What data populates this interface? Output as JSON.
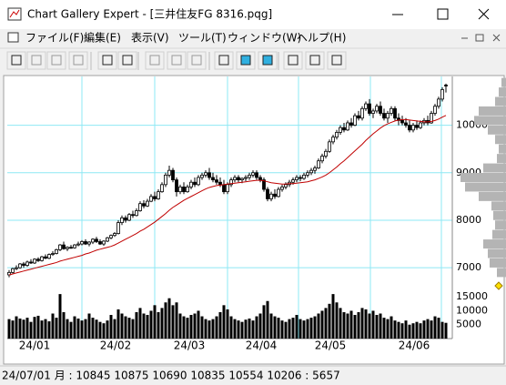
{
  "window": {
    "title": "Chart Gallery Expert - [三井住友FG 8316.pqg]"
  },
  "menu": [
    "ファイル(F)",
    "編集(E)",
    "表示(V)",
    "ツール(T)",
    "ウィンドウ(W)",
    "ヘルプ(H)"
  ],
  "chart_data": {
    "type": "candlestick",
    "x_labels": [
      "24/01",
      "24/02",
      "24/03",
      "24/04",
      "24/05",
      "24/06"
    ],
    "ylim": [
      6850,
      10950
    ],
    "yticks": [
      7000,
      8000,
      9000,
      10000
    ],
    "grid": true,
    "grid_color": "#8ee8f4",
    "up_color": "#ffffff",
    "down_color": "#000000",
    "candles": [
      [
        6850,
        6950,
        6800,
        6900
      ],
      [
        6900,
        7000,
        6880,
        6980
      ],
      [
        6980,
        7050,
        6950,
        7000
      ],
      [
        7000,
        7100,
        6980,
        7080
      ],
      [
        7080,
        7120,
        7000,
        7050
      ],
      [
        7050,
        7150,
        7020,
        7120
      ],
      [
        7120,
        7180,
        7080,
        7100
      ],
      [
        7100,
        7200,
        7080,
        7180
      ],
      [
        7180,
        7220,
        7120,
        7150
      ],
      [
        7150,
        7250,
        7130,
        7230
      ],
      [
        7230,
        7280,
        7180,
        7200
      ],
      [
        7200,
        7300,
        7180,
        7280
      ],
      [
        7280,
        7350,
        7250,
        7300
      ],
      [
        7300,
        7400,
        7280,
        7380
      ],
      [
        7380,
        7500,
        7350,
        7480
      ],
      [
        7480,
        7550,
        7380,
        7400
      ],
      [
        7400,
        7450,
        7350,
        7430
      ],
      [
        7430,
        7480,
        7400,
        7420
      ],
      [
        7420,
        7500,
        7400,
        7480
      ],
      [
        7480,
        7550,
        7450,
        7500
      ],
      [
        7500,
        7580,
        7470,
        7550
      ],
      [
        7550,
        7600,
        7480,
        7500
      ],
      [
        7500,
        7560,
        7450,
        7540
      ],
      [
        7540,
        7620,
        7500,
        7600
      ],
      [
        7600,
        7650,
        7520,
        7550
      ],
      [
        7550,
        7600,
        7480,
        7500
      ],
      [
        7500,
        7580,
        7460,
        7560
      ],
      [
        7560,
        7650,
        7540,
        7630
      ],
      [
        7630,
        7700,
        7600,
        7680
      ],
      [
        7680,
        7750,
        7650,
        7720
      ],
      [
        7720,
        8000,
        7700,
        7950
      ],
      [
        7950,
        8100,
        7900,
        8050
      ],
      [
        8050,
        8100,
        7950,
        8000
      ],
      [
        8000,
        8150,
        7980,
        8120
      ],
      [
        8120,
        8200,
        8050,
        8100
      ],
      [
        8100,
        8250,
        8080,
        8200
      ],
      [
        8200,
        8400,
        8180,
        8350
      ],
      [
        8350,
        8420,
        8250,
        8300
      ],
      [
        8300,
        8450,
        8280,
        8400
      ],
      [
        8400,
        8550,
        8380,
        8500
      ],
      [
        8500,
        8600,
        8400,
        8450
      ],
      [
        8450,
        8650,
        8430,
        8600
      ],
      [
        8600,
        8800,
        8580,
        8750
      ],
      [
        8750,
        9000,
        8700,
        8950
      ],
      [
        8950,
        9150,
        8900,
        9050
      ],
      [
        9050,
        9100,
        8800,
        8850
      ],
      [
        8850,
        8900,
        8500,
        8600
      ],
      [
        8600,
        8750,
        8550,
        8700
      ],
      [
        8700,
        8800,
        8550,
        8600
      ],
      [
        8600,
        8750,
        8580,
        8700
      ],
      [
        8700,
        8850,
        8650,
        8800
      ],
      [
        8800,
        8900,
        8700,
        8750
      ],
      [
        8750,
        8950,
        8720,
        8900
      ],
      [
        8900,
        9000,
        8850,
        8950
      ],
      [
        8950,
        9050,
        8900,
        9000
      ],
      [
        9000,
        9100,
        8850,
        8900
      ],
      [
        8900,
        9000,
        8800,
        8850
      ],
      [
        8850,
        8950,
        8750,
        8800
      ],
      [
        8800,
        8900,
        8700,
        8750
      ],
      [
        8750,
        8850,
        8550,
        8600
      ],
      [
        8600,
        8800,
        8550,
        8750
      ],
      [
        8750,
        8900,
        8700,
        8850
      ],
      [
        8850,
        8950,
        8800,
        8900
      ],
      [
        8900,
        8950,
        8800,
        8850
      ],
      [
        8850,
        8900,
        8780,
        8880
      ],
      [
        8880,
        8950,
        8820,
        8900
      ],
      [
        8900,
        9000,
        8850,
        8950
      ],
      [
        8950,
        9050,
        8900,
        9000
      ],
      [
        9000,
        9050,
        8850,
        8900
      ],
      [
        8900,
        8950,
        8800,
        8850
      ],
      [
        8850,
        8900,
        8600,
        8650
      ],
      [
        8650,
        8700,
        8400,
        8450
      ],
      [
        8450,
        8600,
        8400,
        8550
      ],
      [
        8550,
        8650,
        8450,
        8500
      ],
      [
        8500,
        8700,
        8480,
        8650
      ],
      [
        8650,
        8750,
        8600,
        8700
      ],
      [
        8700,
        8800,
        8650,
        8750
      ],
      [
        8750,
        8850,
        8700,
        8800
      ],
      [
        8800,
        8900,
        8750,
        8850
      ],
      [
        8850,
        8950,
        8800,
        8900
      ],
      [
        8900,
        8950,
        8820,
        8880
      ],
      [
        8880,
        9000,
        8850,
        8950
      ],
      [
        8950,
        9050,
        8900,
        9000
      ],
      [
        9000,
        9100,
        8950,
        9050
      ],
      [
        9050,
        9150,
        8980,
        9100
      ],
      [
        9100,
        9300,
        9080,
        9250
      ],
      [
        9250,
        9400,
        9200,
        9350
      ],
      [
        9350,
        9500,
        9300,
        9450
      ],
      [
        9450,
        9700,
        9420,
        9650
      ],
      [
        9650,
        9800,
        9600,
        9750
      ],
      [
        9750,
        9900,
        9700,
        9850
      ],
      [
        9850,
        10000,
        9800,
        9950
      ],
      [
        9950,
        10050,
        9850,
        9900
      ],
      [
        9900,
        10100,
        9880,
        10050
      ],
      [
        10050,
        10150,
        9950,
        10000
      ],
      [
        10000,
        10250,
        9980,
        10200
      ],
      [
        10200,
        10300,
        10100,
        10150
      ],
      [
        10150,
        10400,
        10100,
        10350
      ],
      [
        10350,
        10500,
        10300,
        10450
      ],
      [
        10450,
        10550,
        10200,
        10250
      ],
      [
        10250,
        10350,
        10150,
        10300
      ],
      [
        10300,
        10450,
        10250,
        10400
      ],
      [
        10400,
        10500,
        10200,
        10250
      ],
      [
        10250,
        10350,
        10100,
        10150
      ],
      [
        10150,
        10300,
        10050,
        10250
      ],
      [
        10250,
        10400,
        10200,
        10350
      ],
      [
        10350,
        10400,
        10100,
        10150
      ],
      [
        10150,
        10250,
        10000,
        10100
      ],
      [
        10100,
        10200,
        10000,
        10050
      ],
      [
        10050,
        10150,
        9950,
        10000
      ],
      [
        10000,
        10100,
        9850,
        9900
      ],
      [
        9900,
        10050,
        9850,
        10000
      ],
      [
        10000,
        10100,
        9900,
        9950
      ],
      [
        9950,
        10100,
        9920,
        10050
      ],
      [
        10050,
        10150,
        10000,
        10100
      ],
      [
        10100,
        10200,
        10000,
        10050
      ],
      [
        10050,
        10300,
        10030,
        10250
      ],
      [
        10250,
        10450,
        10200,
        10400
      ],
      [
        10400,
        10600,
        10350,
        10550
      ],
      [
        10550,
        10800,
        10500,
        10750
      ],
      [
        10845,
        10875,
        10690,
        10835
      ]
    ],
    "ma": {
      "color": "#c00000",
      "values": [
        6850,
        6870,
        6890,
        6910,
        6930,
        6950,
        6970,
        6990,
        7010,
        7030,
        7050,
        7070,
        7090,
        7110,
        7140,
        7160,
        7180,
        7200,
        7220,
        7240,
        7260,
        7290,
        7310,
        7340,
        7370,
        7390,
        7410,
        7430,
        7450,
        7480,
        7520,
        7560,
        7600,
        7640,
        7680,
        7720,
        7770,
        7810,
        7860,
        7910,
        7960,
        8020,
        8080,
        8140,
        8210,
        8270,
        8320,
        8370,
        8420,
        8460,
        8500,
        8540,
        8580,
        8620,
        8660,
        8690,
        8710,
        8730,
        8740,
        8750,
        8760,
        8770,
        8780,
        8790,
        8800,
        8810,
        8820,
        8830,
        8840,
        8840,
        8830,
        8810,
        8790,
        8780,
        8770,
        8760,
        8760,
        8770,
        8770,
        8780,
        8790,
        8800,
        8810,
        8830,
        8850,
        8880,
        8910,
        8950,
        9000,
        9060,
        9120,
        9190,
        9250,
        9320,
        9390,
        9460,
        9530,
        9600,
        9680,
        9750,
        9820,
        9880,
        9940,
        9990,
        10030,
        10060,
        10090,
        10110,
        10120,
        10120,
        10110,
        10100,
        10090,
        10080,
        10070,
        10070,
        10080,
        10100,
        10130,
        10170,
        10206
      ]
    },
    "volume": {
      "ylim": [
        0,
        18000
      ],
      "yticks": [
        5000,
        10000,
        15000
      ],
      "color": "#000000",
      "values": [
        7000,
        6500,
        8000,
        7200,
        6800,
        7500,
        6000,
        7800,
        8200,
        6500,
        7000,
        6200,
        9000,
        7500,
        16000,
        9500,
        7000,
        6000,
        8000,
        7200,
        6500,
        7000,
        9000,
        7500,
        6800,
        6000,
        5500,
        6500,
        8500,
        7000,
        10500,
        9000,
        8000,
        7500,
        7000,
        9500,
        11000,
        9000,
        8500,
        10000,
        12000,
        9500,
        11000,
        13000,
        14500,
        12000,
        13000,
        9000,
        8000,
        7500,
        8500,
        9000,
        10000,
        8000,
        7000,
        6500,
        7000,
        8000,
        9500,
        12000,
        10500,
        8000,
        7000,
        6500,
        6000,
        6800,
        7200,
        6500,
        8000,
        9000,
        12000,
        13500,
        9000,
        8000,
        7500,
        6500,
        6000,
        7000,
        7500,
        8500,
        7000,
        6500,
        7000,
        7500,
        8000,
        9000,
        10000,
        11000,
        12500,
        16000,
        13000,
        11000,
        9500,
        9000,
        10000,
        8500,
        9500,
        11000,
        10500,
        9000,
        10000,
        8500,
        9000,
        7500,
        7000,
        8000,
        6500,
        6000,
        5500,
        6500,
        5000,
        5500,
        6000,
        5500,
        6500,
        7000,
        6500,
        8000,
        7500,
        6000,
        5657
      ]
    },
    "price_profile": {
      "color": "#b4b4b4",
      "prices": [
        6900,
        7100,
        7300,
        7500,
        7700,
        7900,
        8100,
        8300,
        8500,
        8700,
        8900,
        9100,
        9300,
        9500,
        9700,
        9900,
        10100,
        10300,
        10500,
        10700,
        10900
      ],
      "values": [
        10,
        18,
        20,
        25,
        15,
        12,
        14,
        16,
        30,
        45,
        50,
        25,
        10,
        8,
        12,
        20,
        35,
        30,
        12,
        8,
        5
      ]
    }
  },
  "status_bar": "24/07/01 月 : 10845 10875 10690 10835  10554 10206 : 5657"
}
